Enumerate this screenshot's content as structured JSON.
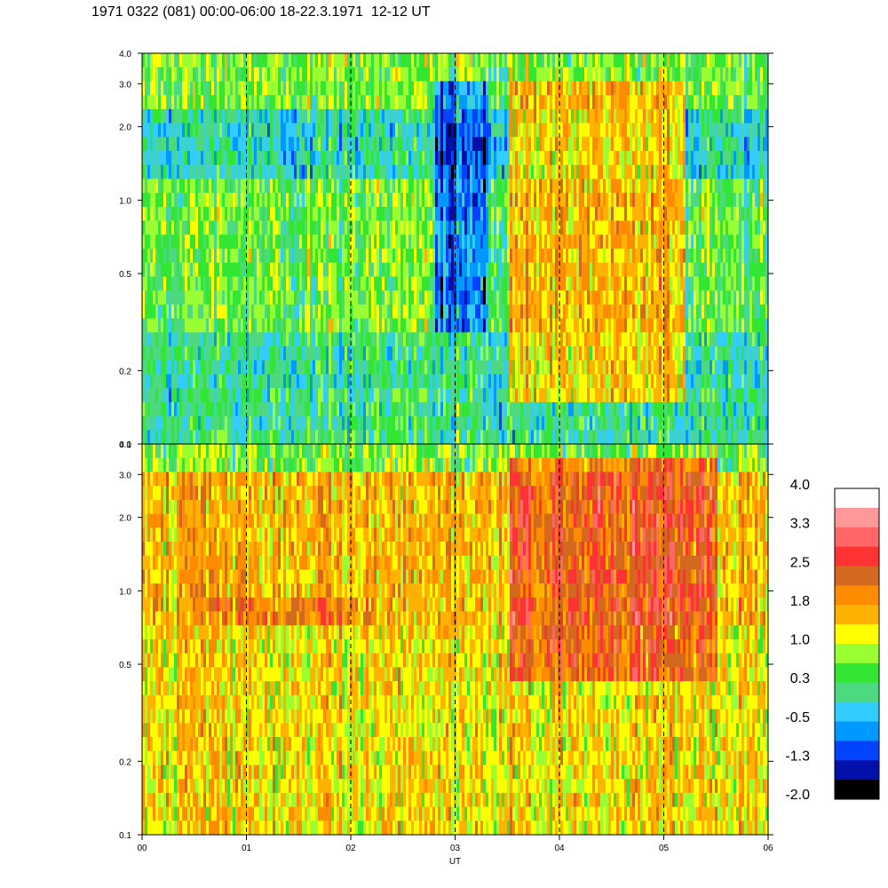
{
  "title": "1971 0322 (081) 00:00-06:00 18-22.3.1971  12-12 UT",
  "chart_data": {
    "type": "heatmap",
    "title": "1971 0322 (081) 00:00-06:00 18-22.3.1971  12-12 UT",
    "xlabel": "UT",
    "x_ticks": [
      "00",
      "01",
      "02",
      "03",
      "04",
      "05",
      "06"
    ],
    "x_range_hours": [
      0,
      6
    ],
    "y_scale": "log",
    "y_range": [
      0.1,
      4.0
    ],
    "y_ticks": [
      0.1,
      0.2,
      0.5,
      1.0,
      2.0,
      3.0,
      4.0
    ],
    "y_tick_labels": [
      "0.1",
      "0.2",
      "0.5",
      "1.0",
      "2.0",
      "3.0",
      "4.0"
    ],
    "vertical_dashed_lines_at_hours": [
      1,
      2,
      3,
      4,
      5
    ],
    "panels": [
      {
        "name": "",
        "dominant_levels": [
          0.3,
          -0.5,
          -1.3,
          1.0
        ],
        "features": [
          {
            "x_hours": [
              3.5,
              5.2
            ],
            "y_range": [
              0.15,
              3.0
            ],
            "level": 1.8
          },
          {
            "x_hours": [
              2.8,
              3.3
            ],
            "y_range": [
              0.3,
              3.0
            ],
            "level": -1.3
          }
        ]
      },
      {
        "name": "",
        "dominant_levels": [
          1.0,
          1.8,
          0.3
        ],
        "features": [
          {
            "x_hours": [
              0.6,
              2.2
            ],
            "y_range": [
              0.75,
              1.0
            ],
            "level": 1.8
          },
          {
            "x_hours": [
              3.5,
              5.5
            ],
            "y_range": [
              0.4,
              3.5
            ],
            "level": 2.5
          },
          {
            "x_hours": [
              0.0,
              6.0
            ],
            "y_range": [
              0.1,
              0.3
            ],
            "level": 1.0
          }
        ]
      }
    ],
    "colorbar": {
      "labels": [
        "4.0",
        "3.3",
        "2.5",
        "1.8",
        "1.0",
        "0.3",
        "-0.5",
        "-1.3",
        "-2.0"
      ],
      "colors": [
        "#ffffff",
        "#ff9999",
        "#ff6666",
        "#ff3333",
        "#d2691e",
        "#ff8c00",
        "#ffb300",
        "#ffff00",
        "#99ff33",
        "#33e633",
        "#4dd980",
        "#33ccff",
        "#0099ff",
        "#0044ff",
        "#0011aa",
        "#000000"
      ]
    }
  }
}
